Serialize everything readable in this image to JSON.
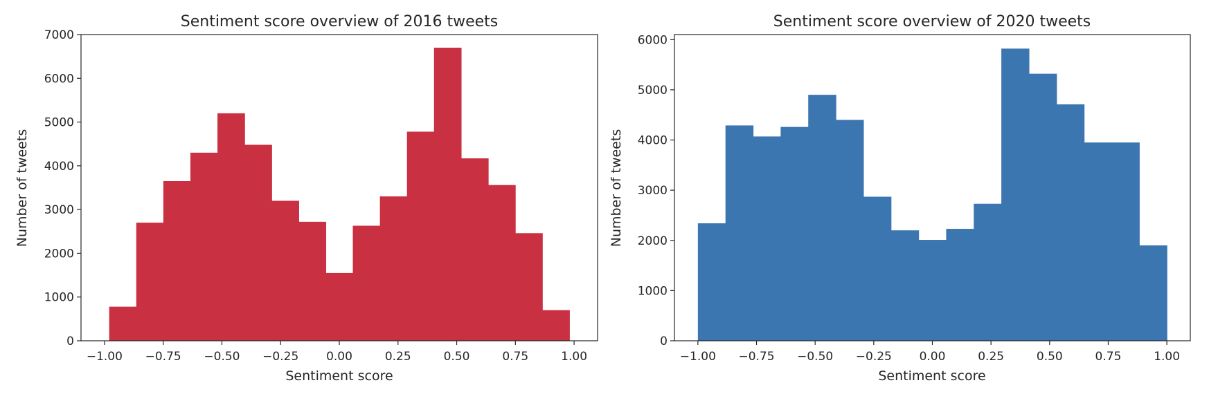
{
  "chart_data": [
    {
      "type": "bar",
      "title": "Sentiment score overview of 2016 tweets",
      "xlabel": "Sentiment score",
      "ylabel": "Number of tweets",
      "color": "#c93041",
      "xlim": [
        -1.1,
        1.1
      ],
      "ylim": [
        0,
        7000
      ],
      "xticks": [
        -1.0,
        -0.75,
        -0.5,
        -0.25,
        0.0,
        0.25,
        0.5,
        0.75,
        1.0
      ],
      "xtick_labels": [
        "−1.00",
        "−0.75",
        "−0.50",
        "−0.25",
        "0.00",
        "0.25",
        "0.50",
        "0.75",
        "1.00"
      ],
      "yticks": [
        0,
        1000,
        2000,
        3000,
        4000,
        5000,
        6000,
        7000
      ],
      "ytick_labels": [
        "0",
        "1000",
        "2000",
        "3000",
        "4000",
        "5000",
        "6000",
        "7000"
      ],
      "bin_range": [
        -0.98,
        0.98
      ],
      "values": [
        780,
        2700,
        3650,
        4300,
        5200,
        4480,
        3200,
        2720,
        1550,
        2630,
        3300,
        4780,
        6700,
        4170,
        3560,
        2460,
        700
      ]
    },
    {
      "type": "bar",
      "title": "Sentiment score overview of 2020 tweets",
      "xlabel": "Sentiment score",
      "ylabel": "Number of tweets",
      "color": "#3b76b0",
      "xlim": [
        -1.1,
        1.1
      ],
      "ylim": [
        0,
        6100
      ],
      "xticks": [
        -1.0,
        -0.75,
        -0.5,
        -0.25,
        0.0,
        0.25,
        0.5,
        0.75,
        1.0
      ],
      "xtick_labels": [
        "−1.00",
        "−0.75",
        "−0.50",
        "−0.25",
        "0.00",
        "0.25",
        "0.50",
        "0.75",
        "1.00"
      ],
      "yticks": [
        0,
        1000,
        2000,
        3000,
        4000,
        5000,
        6000
      ],
      "ytick_labels": [
        "0",
        "1000",
        "2000",
        "3000",
        "4000",
        "5000",
        "6000"
      ],
      "bin_range": [
        -1.0,
        1.0
      ],
      "values": [
        2340,
        4290,
        4070,
        4260,
        4900,
        4400,
        2870,
        2200,
        2010,
        2230,
        2730,
        5820,
        5320,
        4710,
        3950,
        3950,
        1900
      ]
    }
  ]
}
